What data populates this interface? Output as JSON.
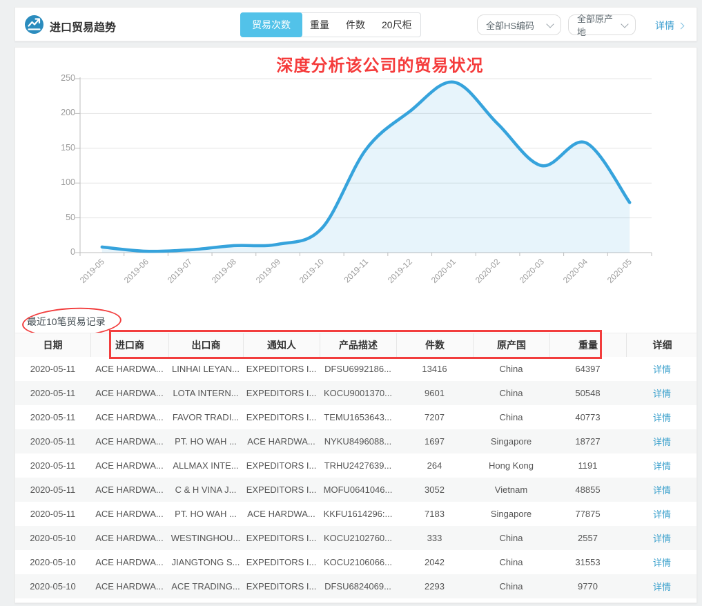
{
  "header": {
    "title": "进口贸易趋势",
    "tabs": [
      "贸易次数",
      "重量",
      "件数",
      "20尺柜"
    ],
    "active_tab": "贸易次数",
    "hs_filter": "全部HS编码",
    "origin_filter": "全部原产地",
    "detail_link": "详情"
  },
  "annotations": {
    "headline": "深度分析该公司的贸易状况",
    "color": "#f53b3b"
  },
  "chart_data": {
    "type": "area",
    "title": "",
    "x": [
      "2019-05",
      "2019-06",
      "2019-07",
      "2019-08",
      "2019-09",
      "2019-10",
      "2019-11",
      "2019-12",
      "2020-01",
      "2020-02",
      "2020-03",
      "2020-04",
      "2020-05"
    ],
    "series": [
      {
        "name": "贸易次数",
        "values": [
          8,
          2,
          4,
          10,
          12,
          35,
          148,
          203,
          245,
          185,
          125,
          158,
          72
        ]
      }
    ],
    "ylim": [
      0,
      250
    ],
    "yticks": [
      0,
      50,
      100,
      150,
      200,
      250
    ],
    "grid": true,
    "legend": "none",
    "line_color": "#36a3dc",
    "fill_color": "rgba(54,163,220,0.12)"
  },
  "colors": {
    "accent_tab": "#52c2e9",
    "icon_circle": "#2b8cbe",
    "link": "#3f9fd0",
    "table_link": "#3aa0cc",
    "annotation_red": "#f53b3b"
  },
  "records": {
    "title": "最近10笔贸易记录",
    "columns": [
      "日期",
      "进口商",
      "出口商",
      "通知人",
      "产品描述",
      "件数",
      "原产国",
      "重量",
      "详细"
    ],
    "detail_label": "详情",
    "rows": [
      [
        "2020-05-11",
        "ACE HARDWA...",
        "LINHAI LEYAN...",
        "EXPEDITORS I...",
        "DFSU6992186...",
        "13416",
        "China",
        "64397"
      ],
      [
        "2020-05-11",
        "ACE HARDWA...",
        "LOTA INTERN...",
        "EXPEDITORS I...",
        "KOCU9001370...",
        "9601",
        "China",
        "50548"
      ],
      [
        "2020-05-11",
        "ACE HARDWA...",
        "FAVOR TRADI...",
        "EXPEDITORS I...",
        "TEMU1653643...",
        "7207",
        "China",
        "40773"
      ],
      [
        "2020-05-11",
        "ACE HARDWA...",
        "PT. HO WAH ...",
        "ACE HARDWA...",
        "NYKU8496088...",
        "1697",
        "Singapore",
        "18727"
      ],
      [
        "2020-05-11",
        "ACE HARDWA...",
        "ALLMAX INTE...",
        "EXPEDITORS I...",
        "TRHU2427639...",
        "264",
        "Hong Kong",
        "1191"
      ],
      [
        "2020-05-11",
        "ACE HARDWA...",
        "C & H VINA J...",
        "EXPEDITORS I...",
        "MOFU0641046...",
        "3052",
        "Vietnam",
        "48855"
      ],
      [
        "2020-05-11",
        "ACE HARDWA...",
        "PT. HO WAH ...",
        "ACE HARDWA...",
        "KKFU1614296:...",
        "7183",
        "Singapore",
        "77875"
      ],
      [
        "2020-05-10",
        "ACE HARDWA...",
        "WESTINGHOU...",
        "EXPEDITORS I...",
        "KOCU2102760...",
        "333",
        "China",
        "2557"
      ],
      [
        "2020-05-10",
        "ACE HARDWA...",
        "JIANGTONG S...",
        "EXPEDITORS I...",
        "KOCU2106066...",
        "2042",
        "China",
        "31553"
      ],
      [
        "2020-05-10",
        "ACE HARDWA...",
        "ACE TRADING...",
        "EXPEDITORS I...",
        "DFSU6824069...",
        "2293",
        "China",
        "9770"
      ]
    ]
  }
}
